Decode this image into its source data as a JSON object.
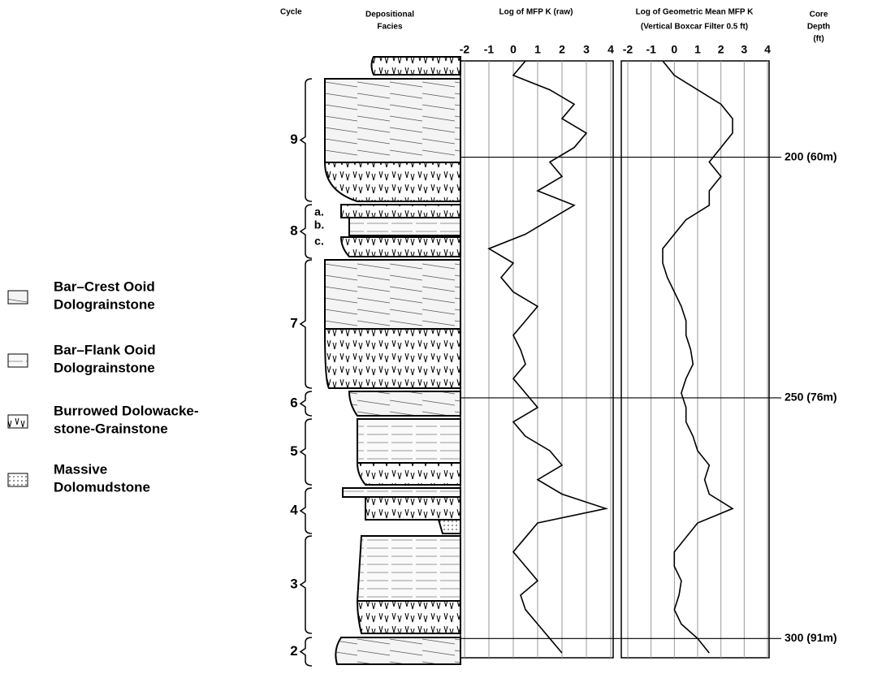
{
  "cycle_header": "Cycle",
  "facies_header": [
    "Depositional",
    "Facies"
  ],
  "cycles": [
    {
      "label": "9"
    },
    {
      "label": "8",
      "parts": [
        "a.",
        "b.",
        "c."
      ]
    },
    {
      "label": "7"
    },
    {
      "label": "6"
    },
    {
      "label": "5"
    },
    {
      "label": "4"
    },
    {
      "label": "3"
    },
    {
      "label": "2"
    }
  ],
  "legend": [
    {
      "lines": [
        "Bar–Crest Ooid",
        "Dolograinstone"
      ]
    },
    {
      "lines": [
        "Bar–Flank Ooid",
        "Dolograinstone"
      ]
    },
    {
      "lines": [
        "Burrowed Dolowacke-",
        "stone-Grainstone"
      ]
    },
    {
      "lines": [
        "Massive",
        "Dolomudstone"
      ]
    }
  ],
  "chart_data": [
    {
      "type": "line",
      "title": "Log of MFP K (raw)",
      "color": "#000000",
      "x": [
        180,
        183,
        186,
        189,
        192,
        195,
        198,
        201,
        204,
        207,
        210,
        213,
        216,
        219,
        222,
        225,
        228,
        231,
        234,
        237,
        240,
        243,
        246,
        249,
        252,
        255,
        258,
        261,
        264,
        267,
        270,
        273,
        276,
        279,
        282,
        285,
        288,
        291,
        294,
        297,
        300,
        303
      ],
      "values": [
        0.5,
        0,
        1.5,
        2.5,
        2,
        3,
        2.5,
        1.5,
        2,
        1,
        2.5,
        1.5,
        0.5,
        -1,
        0,
        -0.5,
        0,
        1,
        0.5,
        0,
        0.3,
        0.5,
        0,
        0.5,
        1,
        0,
        0.5,
        1.5,
        2,
        1,
        2,
        3.8,
        1,
        0.5,
        0,
        0.5,
        1,
        0.3,
        0.5,
        1,
        1.5,
        2
      ],
      "xlim": [
        180,
        304
      ],
      "ylim": [
        -2,
        4
      ],
      "yticks": [
        -2,
        -1,
        0,
        1,
        2,
        3,
        4
      ],
      "grid": true
    },
    {
      "type": "line",
      "title": "Log of Geometric Mean MFP K",
      "subtitle": "(Vertical Boxcar Filter 0.5 ft)",
      "color": "#000000",
      "x": [
        180,
        183,
        186,
        189,
        192,
        195,
        198,
        201,
        204,
        207,
        210,
        213,
        216,
        219,
        222,
        225,
        228,
        231,
        234,
        237,
        240,
        243,
        246,
        249,
        252,
        255,
        258,
        261,
        264,
        267,
        270,
        273,
        276,
        279,
        282,
        285,
        288,
        291,
        294,
        297,
        300,
        303
      ],
      "values": [
        -0.5,
        0,
        1,
        2,
        2.5,
        2.5,
        2,
        1.5,
        2,
        1.5,
        1.5,
        0.5,
        0,
        -0.5,
        -0.5,
        -0.3,
        0,
        0.3,
        0.5,
        0.5,
        0.7,
        0.8,
        0.5,
        0.3,
        0.5,
        0.5,
        0.8,
        1,
        1.5,
        1.3,
        1.5,
        2.5,
        1,
        0.5,
        0,
        0,
        0.3,
        0.2,
        0,
        0.3,
        1,
        1.5
      ],
      "xlim": [
        180,
        304
      ],
      "ylim": [
        -2,
        4
      ],
      "yticks": [
        -2,
        -1,
        0,
        1,
        2,
        3,
        4
      ],
      "grid": true,
      "xlabel": [
        "Core",
        "Depth",
        "(ft)"
      ],
      "xticks": [
        {
          "value": 200,
          "label": "200 (60m)"
        },
        {
          "value": 250,
          "label": "250 (76m)"
        },
        {
          "value": 300,
          "label": "300 (91m)"
        }
      ]
    }
  ]
}
